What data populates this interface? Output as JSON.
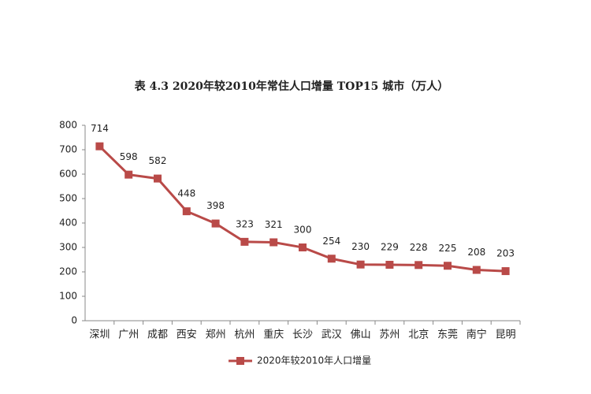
{
  "chart_data": {
    "type": "line",
    "title": "表 4.3   2020年较2010年常住人口增量 TOP15 城市（万人）",
    "categories": [
      "深圳",
      "广州",
      "成都",
      "西安",
      "郑州",
      "杭州",
      "重庆",
      "长沙",
      "武汉",
      "佛山",
      "苏州",
      "北京",
      "东莞",
      "南宁",
      "昆明"
    ],
    "series": [
      {
        "name": "2020年较2010年人口增量",
        "color": "#b94a48",
        "values": [
          714,
          598,
          582,
          448,
          398,
          323,
          321,
          300,
          254,
          230,
          229,
          228,
          225,
          208,
          203
        ]
      }
    ],
    "ylim": [
      0,
      800
    ],
    "yticks": [
      0,
      100,
      200,
      300,
      400,
      500,
      600,
      700,
      800
    ],
    "grid": false,
    "legend": "bottom",
    "data_labels": true
  }
}
